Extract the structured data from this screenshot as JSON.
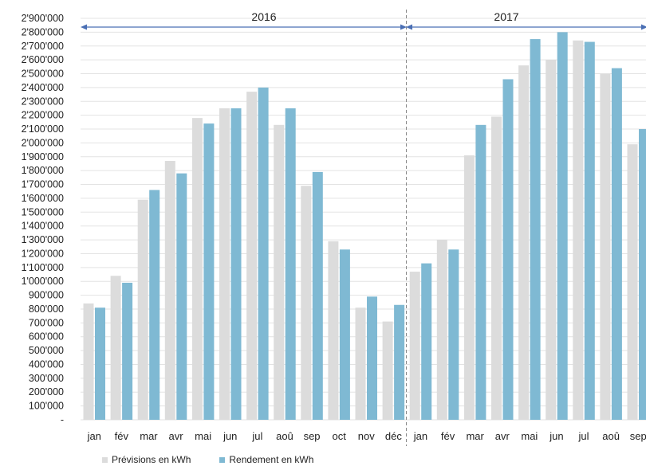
{
  "colors": {
    "forecast": "#dcdcdc",
    "yield": "#7fb9d3",
    "grid": "#e3e3e3",
    "arrow": "#4a6fb4",
    "separator": "#8a8a8a"
  },
  "chart_data": {
    "type": "bar",
    "year_labels": [
      "2016",
      "2017"
    ],
    "categories": [
      "jan",
      "fév",
      "mar",
      "avr",
      "mai",
      "jun",
      "jul",
      "aoû",
      "sep",
      "oct",
      "nov",
      "déc",
      "jan",
      "fév",
      "mar",
      "avr",
      "mai",
      "jun",
      "jul",
      "aoû",
      "sep"
    ],
    "series": [
      {
        "name": "Prévisions en kWh",
        "values": [
          840000,
          1040000,
          1590000,
          1870000,
          2180000,
          2250000,
          2370000,
          2130000,
          1690000,
          1290000,
          810000,
          710000,
          1070000,
          1300000,
          1910000,
          2190000,
          2560000,
          2600000,
          2740000,
          2500000,
          1990000
        ]
      },
      {
        "name": "Rendement en kWh",
        "values": [
          810000,
          990000,
          1660000,
          1780000,
          2140000,
          2250000,
          2400000,
          2250000,
          1790000,
          1230000,
          890000,
          830000,
          1130000,
          1230000,
          2130000,
          2460000,
          2750000,
          2800000,
          2730000,
          2540000,
          2100000
        ]
      }
    ],
    "ylim": [
      0,
      2900000
    ],
    "yticks": [
      "-",
      "100'000",
      "200'000",
      "300'000",
      "400'000",
      "500'000",
      "600'000",
      "700'000",
      "800'000",
      "900'000",
      "1'000'000",
      "1'100'000",
      "1'200'000",
      "1'300'000",
      "1'400'000",
      "1'500'000",
      "1'600'000",
      "1'700'000",
      "1'800'000",
      "1'900'000",
      "2'000'000",
      "2'100'000",
      "2'200'000",
      "2'300'000",
      "2'400'000",
      "2'500'000",
      "2'600'000",
      "2'700'000",
      "2'800'000",
      "2'900'000"
    ],
    "grid": true,
    "legend_position": "bottom-left"
  }
}
